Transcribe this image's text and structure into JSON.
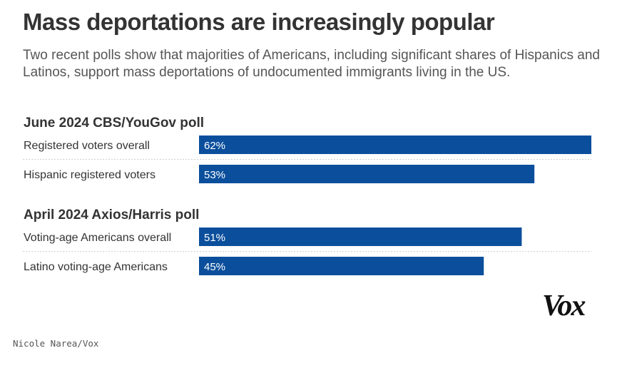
{
  "header": {
    "title": "Mass deportations are increasingly popular",
    "subtitle": "Two recent polls show that majorities of Americans, including significant shares of Hispanics and Latinos, support mass deportations of undocumented immigrants living in the US."
  },
  "footer": {
    "credit": "Nicole Narea/Vox",
    "logo": "Vox"
  },
  "colors": {
    "bar": "#0b4f9c",
    "separator": "#d0d0d0",
    "text": "#333333",
    "bar_label": "#ffffff"
  },
  "chart_data": {
    "type": "bar",
    "orientation": "horizontal",
    "unit": "%",
    "xlim": [
      0,
      62
    ],
    "groups": [
      {
        "title": "June 2024 CBS/YouGov poll",
        "categories": [
          "Registered voters overall",
          "Hispanic registered voters"
        ],
        "values": [
          62,
          53
        ]
      },
      {
        "title": "April 2024 Axios/Harris poll",
        "categories": [
          "Voting-age Americans overall",
          "Latino voting-age Americans"
        ],
        "values": [
          51,
          45
        ]
      }
    ]
  }
}
